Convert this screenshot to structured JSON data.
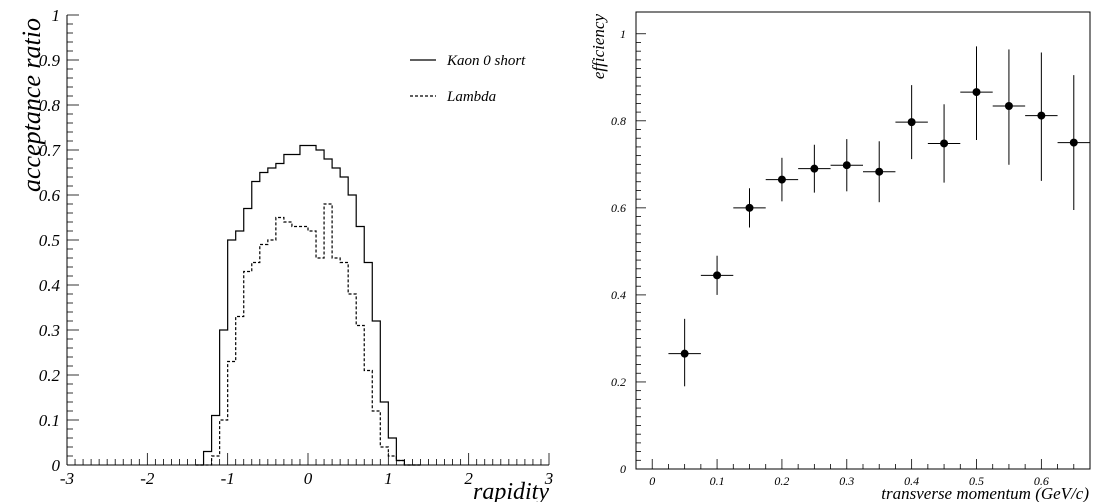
{
  "chart_data": [
    {
      "type": "line",
      "style": "step-histogram",
      "xlabel": "rapidity",
      "ylabel": "acceptance ratio",
      "xlim": [
        -3,
        3
      ],
      "ylim": [
        0,
        1
      ],
      "x_ticks": [
        "-3",
        "-2",
        "-1",
        "0",
        "1",
        "2",
        "3"
      ],
      "y_ticks": [
        "0",
        "0.1",
        "0.2",
        "0.3",
        "0.4",
        "0.5",
        "0.6",
        "0.7",
        "0.8",
        "0.9",
        "1"
      ],
      "legend_position": "top-right",
      "bin_edges": [
        -1.4,
        -1.3,
        -1.2,
        -1.1,
        -1.0,
        -0.9,
        -0.8,
        -0.7,
        -0.6,
        -0.5,
        -0.4,
        -0.3,
        -0.2,
        -0.1,
        0.0,
        0.1,
        0.2,
        0.3,
        0.4,
        0.5,
        0.6,
        0.7,
        0.8,
        0.9,
        1.0,
        1.1,
        1.2,
        1.3,
        1.4
      ],
      "series": [
        {
          "name": "Kaon 0 short",
          "line": "solid",
          "values": [
            0.0,
            0.03,
            0.11,
            0.3,
            0.5,
            0.52,
            0.57,
            0.63,
            0.65,
            0.66,
            0.67,
            0.69,
            0.69,
            0.71,
            0.71,
            0.7,
            0.68,
            0.66,
            0.64,
            0.6,
            0.53,
            0.45,
            0.32,
            0.14,
            0.06,
            0.01,
            0.0,
            0.0
          ]
        },
        {
          "name": "Lambda",
          "line": "dashed",
          "values": [
            0.0,
            0.0,
            0.02,
            0.1,
            0.23,
            0.33,
            0.43,
            0.45,
            0.49,
            0.5,
            0.55,
            0.54,
            0.53,
            0.53,
            0.52,
            0.46,
            0.58,
            0.46,
            0.45,
            0.38,
            0.31,
            0.21,
            0.12,
            0.04,
            0.02,
            0.01,
            0.0,
            0.0
          ]
        }
      ]
    },
    {
      "type": "scatter",
      "style": "error-bars",
      "xlabel": "transverse momentum (GeV/c)",
      "ylabel": "efficiency",
      "xlim": [
        -0.025,
        0.675
      ],
      "ylim": [
        0,
        1.05
      ],
      "x_ticks": [
        "0",
        "0.1",
        "0.2",
        "0.3",
        "0.4",
        "0.5",
        "0.6"
      ],
      "y_ticks": [
        "0",
        "0.2",
        "0.4",
        "0.6",
        "0.8",
        "1"
      ],
      "x": [
        0.05,
        0.1,
        0.15,
        0.2,
        0.25,
        0.3,
        0.35,
        0.4,
        0.45,
        0.5,
        0.55,
        0.6,
        0.65
      ],
      "x_err": 0.025,
      "series": [
        {
          "values": [
            0.265,
            0.445,
            0.6,
            0.665,
            0.69,
            0.698,
            0.683,
            0.797,
            0.748,
            0.866,
            0.834,
            0.812,
            0.75
          ],
          "err_up": [
            0.08,
            0.045,
            0.045,
            0.05,
            0.055,
            0.06,
            0.07,
            0.085,
            0.09,
            0.105,
            0.13,
            0.145,
            0.155
          ],
          "err_down": [
            0.075,
            0.045,
            0.045,
            0.05,
            0.055,
            0.06,
            0.07,
            0.085,
            0.09,
            0.11,
            0.135,
            0.15,
            0.155
          ]
        }
      ]
    }
  ]
}
